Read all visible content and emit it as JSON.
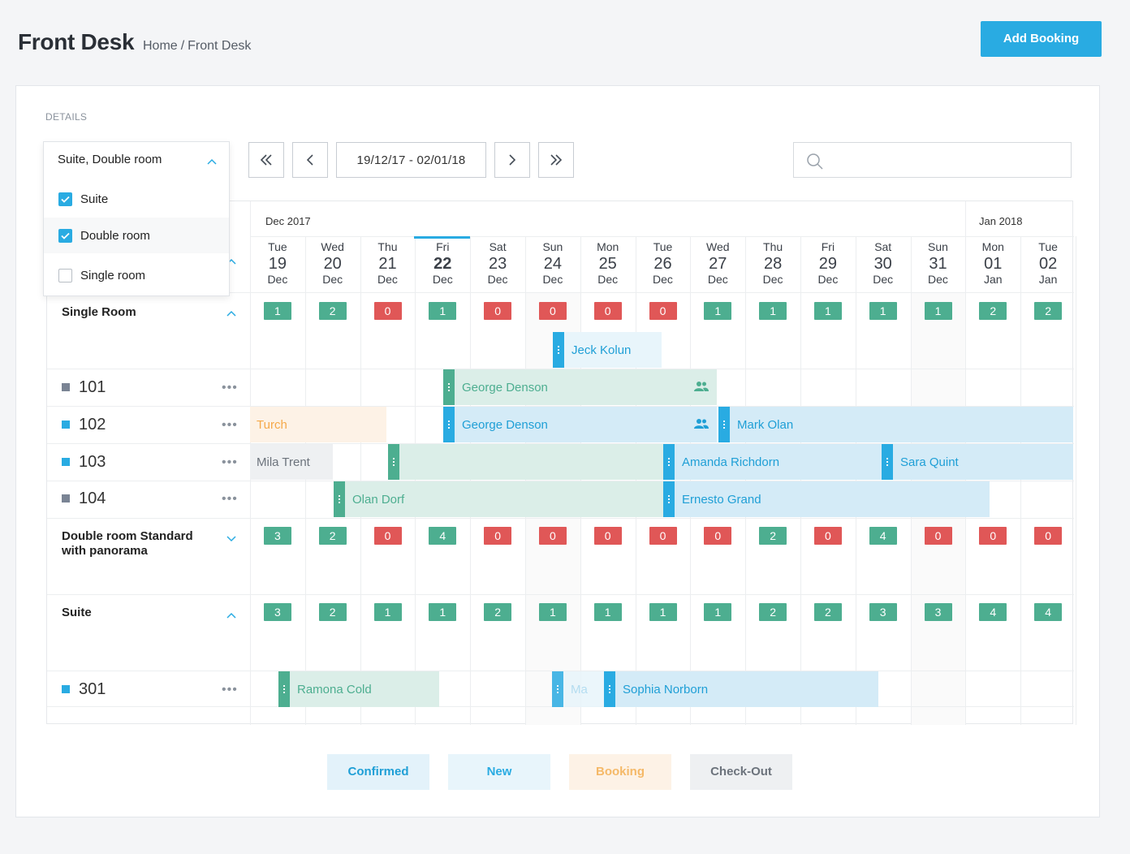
{
  "header": {
    "title": "Front Desk",
    "breadcrumb_home": "Home",
    "breadcrumb_sep": "/",
    "breadcrumb_current": "Front Desk",
    "add_booking": "Add Booking"
  },
  "panel": {
    "section_label": "DETAILS"
  },
  "filter": {
    "selected": "Suite, Double room",
    "options": [
      {
        "label": "Suite",
        "checked": true
      },
      {
        "label": "Double room",
        "checked": true
      },
      {
        "label": "Single room",
        "checked": false
      }
    ]
  },
  "nav": {
    "range": "19/12/17 - 02/01/18"
  },
  "search": {
    "placeholder": ""
  },
  "calendar": {
    "months": [
      {
        "label": "Dec 2017"
      },
      {
        "label": "Jan 2018"
      }
    ],
    "days": [
      {
        "dow": "Tue",
        "day": "19",
        "mon": "Dec"
      },
      {
        "dow": "Wed",
        "day": "20",
        "mon": "Dec"
      },
      {
        "dow": "Thu",
        "day": "21",
        "mon": "Dec"
      },
      {
        "dow": "Fri",
        "day": "22",
        "mon": "Dec",
        "today": true
      },
      {
        "dow": "Sat",
        "day": "23",
        "mon": "Dec"
      },
      {
        "dow": "Sun",
        "day": "24",
        "mon": "Dec"
      },
      {
        "dow": "Mon",
        "day": "25",
        "mon": "Dec"
      },
      {
        "dow": "Tue",
        "day": "26",
        "mon": "Dec"
      },
      {
        "dow": "Wed",
        "day": "27",
        "mon": "Dec"
      },
      {
        "dow": "Thu",
        "day": "28",
        "mon": "Dec"
      },
      {
        "dow": "Fri",
        "day": "29",
        "mon": "Dec"
      },
      {
        "dow": "Sat",
        "day": "30",
        "mon": "Dec"
      },
      {
        "dow": "Sun",
        "day": "31",
        "mon": "Dec"
      },
      {
        "dow": "Mon",
        "day": "01",
        "mon": "Jan"
      },
      {
        "dow": "Tue",
        "day": "02",
        "mon": "Jan"
      }
    ]
  },
  "groups": [
    {
      "name": "Single Room",
      "expanded": true,
      "availability": [
        "1",
        "2",
        "0",
        "1",
        "0",
        "0",
        "0",
        "0",
        "1",
        "1",
        "1",
        "1",
        "1",
        "2",
        "2"
      ]
    },
    {
      "name": "Double room Standard",
      "name2": "with panorama",
      "expanded": false,
      "availability": [
        "3",
        "2",
        "0",
        "4",
        "0",
        "0",
        "0",
        "0",
        "0",
        "2",
        "0",
        "4",
        "0",
        "0",
        "0"
      ]
    },
    {
      "name": "Suite",
      "expanded": true,
      "availability": [
        "3",
        "2",
        "1",
        "1",
        "2",
        "1",
        "1",
        "1",
        "1",
        "2",
        "2",
        "3",
        "3",
        "4",
        "4"
      ]
    }
  ],
  "rooms": [
    {
      "number": "101",
      "status_color": "#7a8494"
    },
    {
      "number": "102",
      "status_color": "#29abe2"
    },
    {
      "number": "103",
      "status_color": "#29abe2"
    },
    {
      "number": "104",
      "status_color": "#7a8494"
    },
    {
      "number": "301",
      "status_color": "#29abe2"
    }
  ],
  "bookings": {
    "jeck": "Jeck Kolun",
    "george1": "George Denson",
    "turch": "Turch",
    "george2": "George Denson",
    "mark": "Mark Olan",
    "mila": "Mila Trent",
    "amanda": "Amanda Richdorn",
    "sara": "Sara Quint",
    "olan": "Olan Dorf",
    "ernesto": "Ernesto Grand",
    "ramona": "Ramona Cold",
    "ma": "Ma",
    "sophia": "Sophia Norborn"
  },
  "legend": [
    {
      "label": "Confirmed",
      "bg": "#e3f2fa",
      "fg": "#1f9fd6"
    },
    {
      "label": "New",
      "bg": "#e8f5fb",
      "fg": "#29abe2"
    },
    {
      "label": "Booking",
      "bg": "#fdf2e6",
      "fg": "#f5b968"
    },
    {
      "label": "Check-Out",
      "bg": "#eef0f2",
      "fg": "#6c737c"
    }
  ],
  "colors": {
    "accent": "#29abe2",
    "available": "#4dae90",
    "unavailable": "#e05757"
  }
}
